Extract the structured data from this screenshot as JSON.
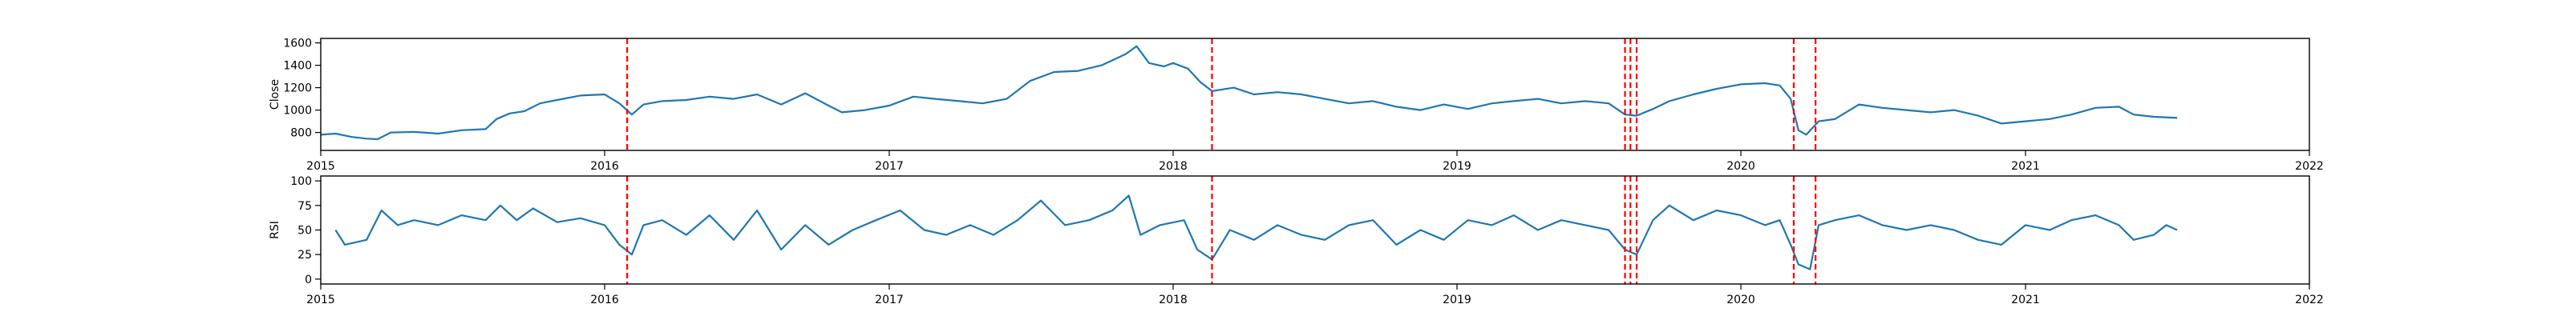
{
  "chart_data": [
    {
      "type": "line",
      "title": "",
      "xlabel": "",
      "ylabel": "Close",
      "xlim": [
        "2015-01-01",
        "2022-01-01"
      ],
      "ylim": [
        640,
        1640
      ],
      "x_ticks": [
        "2015",
        "2016",
        "2017",
        "2018",
        "2019",
        "2020",
        "2021",
        "2022"
      ],
      "y_ticks": [
        800,
        1000,
        1200,
        1400,
        1600
      ],
      "grid": false,
      "series": [
        {
          "color": "#1f77b4",
          "points": [
            [
              "2015-01-01",
              780
            ],
            [
              "2015-01-20",
              790
            ],
            [
              "2015-02-10",
              760
            ],
            [
              "2015-03-01",
              745
            ],
            [
              "2015-03-15",
              740
            ],
            [
              "2015-04-01",
              800
            ],
            [
              "2015-05-01",
              805
            ],
            [
              "2015-06-01",
              790
            ],
            [
              "2015-07-01",
              820
            ],
            [
              "2015-08-01",
              830
            ],
            [
              "2015-08-15",
              920
            ],
            [
              "2015-09-01",
              970
            ],
            [
              "2015-09-20",
              990
            ],
            [
              "2015-10-10",
              1060
            ],
            [
              "2015-11-01",
              1090
            ],
            [
              "2015-12-01",
              1130
            ],
            [
              "2016-01-01",
              1140
            ],
            [
              "2016-01-20",
              1060
            ],
            [
              "2016-02-05",
              960
            ],
            [
              "2016-02-20",
              1050
            ],
            [
              "2016-03-15",
              1080
            ],
            [
              "2016-04-15",
              1090
            ],
            [
              "2016-05-15",
              1120
            ],
            [
              "2016-06-15",
              1100
            ],
            [
              "2016-07-15",
              1140
            ],
            [
              "2016-08-15",
              1050
            ],
            [
              "2016-09-15",
              1150
            ],
            [
              "2016-10-15",
              1040
            ],
            [
              "2016-11-01",
              980
            ],
            [
              "2016-12-01",
              1000
            ],
            [
              "2017-01-01",
              1040
            ],
            [
              "2017-02-01",
              1120
            ],
            [
              "2017-03-01",
              1100
            ],
            [
              "2017-04-01",
              1080
            ],
            [
              "2017-05-01",
              1060
            ],
            [
              "2017-06-01",
              1100
            ],
            [
              "2017-07-01",
              1260
            ],
            [
              "2017-08-01",
              1340
            ],
            [
              "2017-09-01",
              1350
            ],
            [
              "2017-10-01",
              1400
            ],
            [
              "2017-11-01",
              1500
            ],
            [
              "2017-11-15",
              1570
            ],
            [
              "2017-12-01",
              1420
            ],
            [
              "2017-12-20",
              1390
            ],
            [
              "2018-01-01",
              1420
            ],
            [
              "2018-01-20",
              1370
            ],
            [
              "2018-02-05",
              1250
            ],
            [
              "2018-02-20",
              1170
            ],
            [
              "2018-03-20",
              1200
            ],
            [
              "2018-04-15",
              1140
            ],
            [
              "2018-05-15",
              1160
            ],
            [
              "2018-06-15",
              1140
            ],
            [
              "2018-07-15",
              1100
            ],
            [
              "2018-08-15",
              1060
            ],
            [
              "2018-09-15",
              1080
            ],
            [
              "2018-10-15",
              1030
            ],
            [
              "2018-11-15",
              1000
            ],
            [
              "2018-12-15",
              1050
            ],
            [
              "2019-01-15",
              1010
            ],
            [
              "2019-02-15",
              1060
            ],
            [
              "2019-03-15",
              1080
            ],
            [
              "2019-04-15",
              1100
            ],
            [
              "2019-05-15",
              1060
            ],
            [
              "2019-06-15",
              1080
            ],
            [
              "2019-07-15",
              1060
            ],
            [
              "2019-08-05",
              960
            ],
            [
              "2019-08-20",
              950
            ],
            [
              "2019-09-10",
              1010
            ],
            [
              "2019-10-01",
              1080
            ],
            [
              "2019-11-01",
              1140
            ],
            [
              "2019-12-01",
              1190
            ],
            [
              "2020-01-01",
              1230
            ],
            [
              "2020-02-01",
              1240
            ],
            [
              "2020-02-20",
              1220
            ],
            [
              "2020-03-05",
              1100
            ],
            [
              "2020-03-15",
              820
            ],
            [
              "2020-03-25",
              780
            ],
            [
              "2020-04-10",
              900
            ],
            [
              "2020-05-01",
              920
            ],
            [
              "2020-06-01",
              1050
            ],
            [
              "2020-07-01",
              1020
            ],
            [
              "2020-08-01",
              1000
            ],
            [
              "2020-09-01",
              980
            ],
            [
              "2020-10-01",
              1000
            ],
            [
              "2020-11-01",
              950
            ],
            [
              "2020-12-01",
              880
            ],
            [
              "2021-01-01",
              900
            ],
            [
              "2021-02-01",
              920
            ],
            [
              "2021-03-01",
              960
            ],
            [
              "2021-04-01",
              1020
            ],
            [
              "2021-05-01",
              1030
            ],
            [
              "2021-05-20",
              960
            ],
            [
              "2021-06-15",
              940
            ],
            [
              "2021-07-15",
              930
            ]
          ]
        }
      ],
      "vlines": {
        "color": "#ff0000",
        "x": [
          "2016-01-30",
          "2018-02-20",
          "2019-08-05",
          "2019-08-12",
          "2019-08-20",
          "2020-03-09",
          "2020-04-06"
        ]
      }
    },
    {
      "type": "line",
      "title": "",
      "xlabel": "",
      "ylabel": "RSI",
      "xlim": [
        "2015-01-01",
        "2022-01-01"
      ],
      "ylim": [
        -5,
        105
      ],
      "x_ticks": [
        "2015",
        "2016",
        "2017",
        "2018",
        "2019",
        "2020",
        "2021",
        "2022"
      ],
      "y_ticks": [
        0,
        25,
        50,
        75,
        100
      ],
      "grid": false,
      "series": [
        {
          "color": "#1f77b4",
          "points": [
            [
              "2015-01-20",
              50
            ],
            [
              "2015-02-01",
              35
            ],
            [
              "2015-03-01",
              40
            ],
            [
              "2015-03-20",
              70
            ],
            [
              "2015-04-10",
              55
            ],
            [
              "2015-05-01",
              60
            ],
            [
              "2015-06-01",
              55
            ],
            [
              "2015-07-01",
              65
            ],
            [
              "2015-08-01",
              60
            ],
            [
              "2015-08-20",
              75
            ],
            [
              "2015-09-10",
              60
            ],
            [
              "2015-10-01",
              72
            ],
            [
              "2015-11-01",
              58
            ],
            [
              "2015-12-01",
              62
            ],
            [
              "2016-01-01",
              55
            ],
            [
              "2016-01-20",
              35
            ],
            [
              "2016-02-05",
              25
            ],
            [
              "2016-02-20",
              55
            ],
            [
              "2016-03-15",
              60
            ],
            [
              "2016-04-15",
              45
            ],
            [
              "2016-05-15",
              65
            ],
            [
              "2016-06-15",
              40
            ],
            [
              "2016-07-15",
              70
            ],
            [
              "2016-08-15",
              30
            ],
            [
              "2016-09-15",
              55
            ],
            [
              "2016-10-15",
              35
            ],
            [
              "2016-11-15",
              50
            ],
            [
              "2016-12-15",
              60
            ],
            [
              "2017-01-15",
              70
            ],
            [
              "2017-02-15",
              50
            ],
            [
              "2017-03-15",
              45
            ],
            [
              "2017-04-15",
              55
            ],
            [
              "2017-05-15",
              45
            ],
            [
              "2017-06-15",
              60
            ],
            [
              "2017-07-15",
              80
            ],
            [
              "2017-08-15",
              55
            ],
            [
              "2017-09-15",
              60
            ],
            [
              "2017-10-15",
              70
            ],
            [
              "2017-11-05",
              85
            ],
            [
              "2017-11-20",
              45
            ],
            [
              "2017-12-15",
              55
            ],
            [
              "2018-01-15",
              60
            ],
            [
              "2018-02-01",
              30
            ],
            [
              "2018-02-20",
              20
            ],
            [
              "2018-03-15",
              50
            ],
            [
              "2018-04-15",
              40
            ],
            [
              "2018-05-15",
              55
            ],
            [
              "2018-06-15",
              45
            ],
            [
              "2018-07-15",
              40
            ],
            [
              "2018-08-15",
              55
            ],
            [
              "2018-09-15",
              60
            ],
            [
              "2018-10-15",
              35
            ],
            [
              "2018-11-15",
              50
            ],
            [
              "2018-12-15",
              40
            ],
            [
              "2019-01-15",
              60
            ],
            [
              "2019-02-15",
              55
            ],
            [
              "2019-03-15",
              65
            ],
            [
              "2019-04-15",
              50
            ],
            [
              "2019-05-15",
              60
            ],
            [
              "2019-06-15",
              55
            ],
            [
              "2019-07-15",
              50
            ],
            [
              "2019-08-05",
              30
            ],
            [
              "2019-08-20",
              25
            ],
            [
              "2019-09-10",
              60
            ],
            [
              "2019-10-01",
              75
            ],
            [
              "2019-11-01",
              60
            ],
            [
              "2019-12-01",
              70
            ],
            [
              "2020-01-01",
              65
            ],
            [
              "2020-02-01",
              55
            ],
            [
              "2020-02-20",
              60
            ],
            [
              "2020-03-05",
              35
            ],
            [
              "2020-03-15",
              15
            ],
            [
              "2020-03-30",
              10
            ],
            [
              "2020-04-10",
              55
            ],
            [
              "2020-05-01",
              60
            ],
            [
              "2020-06-01",
              65
            ],
            [
              "2020-07-01",
              55
            ],
            [
              "2020-08-01",
              50
            ],
            [
              "2020-09-01",
              55
            ],
            [
              "2020-10-01",
              50
            ],
            [
              "2020-11-01",
              40
            ],
            [
              "2020-12-01",
              35
            ],
            [
              "2021-01-01",
              55
            ],
            [
              "2021-02-01",
              50
            ],
            [
              "2021-03-01",
              60
            ],
            [
              "2021-04-01",
              65
            ],
            [
              "2021-05-01",
              55
            ],
            [
              "2021-05-20",
              40
            ],
            [
              "2021-06-15",
              45
            ],
            [
              "2021-07-01",
              55
            ],
            [
              "2021-07-15",
              50
            ]
          ]
        }
      ],
      "vlines": {
        "color": "#ff0000",
        "x": [
          "2016-01-30",
          "2018-02-20",
          "2019-08-05",
          "2019-08-12",
          "2019-08-20",
          "2020-03-09",
          "2020-04-06"
        ]
      }
    }
  ]
}
